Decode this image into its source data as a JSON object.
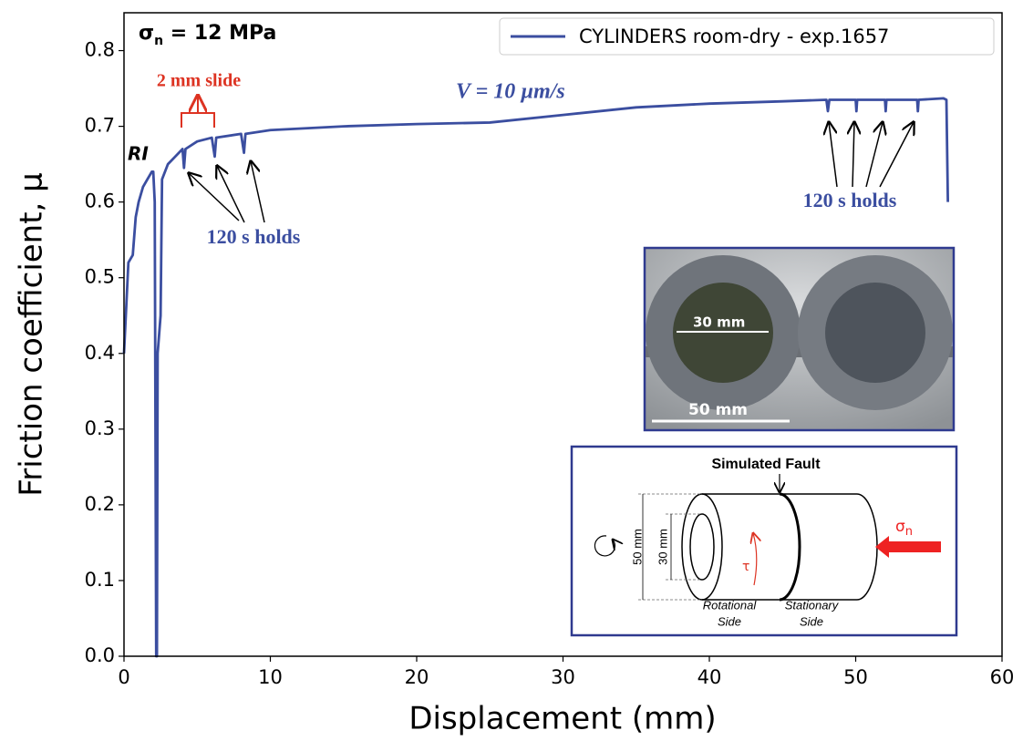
{
  "chart_data": {
    "type": "line",
    "xlabel": "Displacement (mm)",
    "ylabel": "Friction coefficient, μ",
    "xlim": [
      0,
      60
    ],
    "ylim": [
      0,
      0.85
    ],
    "xticks": [
      0,
      10,
      20,
      30,
      40,
      50,
      60
    ],
    "yticks": [
      {
        "value": 0,
        "label": "0.0"
      },
      0.1,
      0.2,
      0.3,
      0.4,
      0.5,
      0.6,
      0.7,
      0.8
    ],
    "grid": false,
    "legend": "upper right",
    "x": [
      0,
      0.1,
      0.3,
      0.6,
      0.8,
      1.0,
      1.3,
      1.6,
      1.9,
      2.0,
      2.1,
      2.2,
      2.25,
      2.3,
      2.5,
      2.6,
      3.0,
      3.5,
      4.0,
      4.1,
      4.2,
      5,
      6,
      6.2,
      6.3,
      8,
      8.2,
      8.3,
      10,
      15,
      20,
      25,
      30,
      35,
      40,
      45,
      48,
      48.1,
      48.2,
      50,
      50.05,
      50.1,
      52,
      52.05,
      52.1,
      54.2,
      54.25,
      54.3,
      56,
      56.2,
      56.3
    ],
    "series": [
      {
        "name": "CYLINDERS room-dry - exp.1657",
        "color": "#3b4ea0",
        "values": [
          0.4,
          0.44,
          0.52,
          0.53,
          0.58,
          0.6,
          0.62,
          0.63,
          0.64,
          0.64,
          0.6,
          0.0,
          0.0,
          0.4,
          0.45,
          0.63,
          0.65,
          0.66,
          0.67,
          0.645,
          0.67,
          0.68,
          0.685,
          0.66,
          0.685,
          0.69,
          0.665,
          0.69,
          0.695,
          0.7,
          0.703,
          0.705,
          0.715,
          0.725,
          0.73,
          0.733,
          0.735,
          0.72,
          0.735,
          0.735,
          0.72,
          0.735,
          0.735,
          0.72,
          0.735,
          0.735,
          0.72,
          0.735,
          0.737,
          0.735,
          0.6
        ]
      }
    ],
    "annotations": {
      "sigma": {
        "symbol": "σ",
        "subscript": "n",
        "rest": " = 12 MPa"
      },
      "ri": "RI",
      "slide": "2 mm slide",
      "velocity": "V = 10 µm/s",
      "holds_left": "120 s holds",
      "holds_right": "120 s holds",
      "photo_30": "30 mm",
      "photo_50": "50 mm",
      "fault": "Simulated Fault",
      "dim_50": "50 mm",
      "dim_30": "30 mm",
      "sigma_n": {
        "symbol": "σ",
        "subscript": "n"
      },
      "tau": "τ",
      "rotational": "Rotational",
      "rotational_side": "Side",
      "stationary": "Stationary",
      "stationary_side": "Side"
    }
  }
}
